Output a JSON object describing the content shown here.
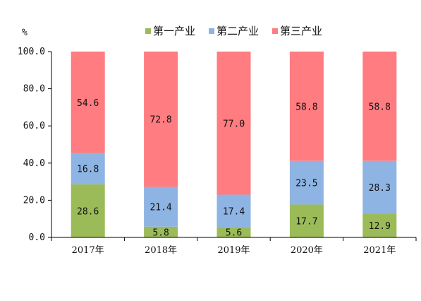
{
  "chart_data": {
    "type": "bar",
    "stacked": true,
    "unit_label": "%",
    "categories": [
      "2017年",
      "2018年",
      "2019年",
      "2020年",
      "2021年"
    ],
    "series": [
      {
        "name": "第一产业",
        "color": "#9BBB59",
        "values": [
          28.6,
          5.8,
          5.6,
          17.7,
          12.9
        ],
        "labels": [
          "28.6",
          "5.8",
          "5.6",
          "17.7",
          "12.9"
        ]
      },
      {
        "name": "第二产业",
        "color": "#8EB4E3",
        "values": [
          16.8,
          21.4,
          17.4,
          23.5,
          28.3
        ],
        "labels": [
          "16.8",
          "21.4",
          "17.4",
          "23.5",
          "28.3"
        ]
      },
      {
        "name": "第三产业",
        "color": "#FF7C80",
        "values": [
          54.6,
          72.8,
          77.0,
          58.8,
          58.8
        ],
        "labels": [
          "54.6",
          "72.8",
          "77.0",
          "58.8",
          "58.8"
        ]
      }
    ],
    "ylim": [
      0,
      100
    ],
    "yticks": [
      "0.0",
      "20.0",
      "40.0",
      "60.0",
      "80.0",
      "100.0"
    ],
    "grid": false,
    "legend_position": "top-center"
  }
}
